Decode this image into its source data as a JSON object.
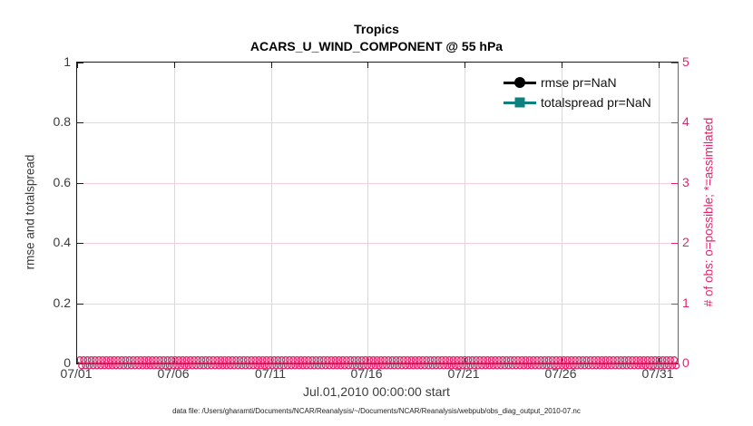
{
  "title": {
    "line1": "Tropics",
    "line2": "ACARS_U_WIND_COMPONENT @ 55 hPa"
  },
  "axes": {
    "left": {
      "label": "rmse and totalspread",
      "ticks": [
        "0",
        "0.2",
        "0.4",
        "0.6",
        "0.8",
        "1"
      ],
      "color": "#000000",
      "range": [
        0,
        1
      ]
    },
    "right": {
      "label": "# of obs: o=possible; *=assimilated",
      "ticks": [
        "0",
        "1",
        "2",
        "3",
        "4",
        "5"
      ],
      "color": "#e0256c",
      "range": [
        0,
        5
      ]
    },
    "x": {
      "label": "Jul.01,2010 00:00:00 start",
      "ticks": [
        "07/01",
        "07/06",
        "07/11",
        "07/16",
        "07/21",
        "07/26",
        "07/31"
      ]
    }
  },
  "legend": [
    {
      "label": "rmse pr=NaN",
      "color": "#000000",
      "marker": "circle"
    },
    {
      "label": "totalspread pr=NaN",
      "color": "#0e8080",
      "marker": "square"
    }
  ],
  "caption": "data file: /Users/gharamti/Documents/NCAR/Reanalysis/~/Documents/NCAR/Reanalysis/webpub/obs_diag_output_2010-07.nc",
  "colors": {
    "obs_marker": "#e0256c",
    "grid_vertical": "#d9d9d9",
    "grid_horizontal": "#f5cede"
  },
  "chart_data": {
    "type": "line",
    "title": "Tropics",
    "subtitle": "ACARS_U_WIND_COMPONENT @ 55 hPa",
    "xlabel": "Jul.01,2010 00:00:00 start",
    "ylabel_left": "rmse and totalspread",
    "ylabel_right": "# of obs: o=possible; *=assimilated",
    "x_tick_labels": [
      "07/01",
      "07/06",
      "07/11",
      "07/16",
      "07/21",
      "07/26",
      "07/31"
    ],
    "x_range": [
      "2010-07-01 00:00",
      "2010-08-01 00:00"
    ],
    "ylim_left": [
      0,
      1
    ],
    "ylim_right": [
      0,
      5
    ],
    "grid": true,
    "legend_position": "top-right-inside",
    "series": [
      {
        "name": "rmse pr=NaN",
        "axis": "left",
        "color": "#000000",
        "marker": "circle",
        "values": "all NaN (no curve drawn)"
      },
      {
        "name": "totalspread pr=NaN",
        "axis": "left",
        "color": "#0e8080",
        "marker": "square",
        "values": "all NaN (no curve drawn)"
      },
      {
        "name": "# of obs possible (o)",
        "axis": "right",
        "color": "#e0256c",
        "marker": "o",
        "values": "0 at every time step 07/01–08/01"
      },
      {
        "name": "# of obs assimilated (*)",
        "axis": "right",
        "color": "#e0256c",
        "marker": "*",
        "values": "0 at every time step 07/01–08/01"
      }
    ]
  }
}
